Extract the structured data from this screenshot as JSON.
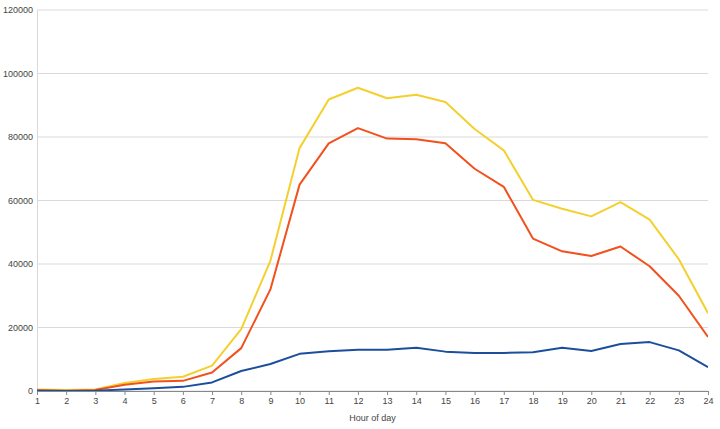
{
  "chart_data": {
    "type": "line",
    "x_label": "Hour of day",
    "x": [
      1,
      2,
      3,
      4,
      5,
      6,
      7,
      8,
      9,
      10,
      11,
      12,
      13,
      14,
      15,
      16,
      17,
      18,
      19,
      20,
      21,
      22,
      23,
      24
    ],
    "xlim": [
      1,
      24
    ],
    "xticks": [
      1,
      2,
      3,
      4,
      5,
      6,
      7,
      8,
      9,
      10,
      11,
      12,
      13,
      14,
      15,
      16,
      17,
      18,
      19,
      20,
      21,
      22,
      23,
      24
    ],
    "ylim": [
      0,
      120000
    ],
    "yticks": [
      0,
      20000,
      40000,
      60000,
      80000,
      100000,
      120000
    ],
    "grid": true,
    "series": [
      {
        "color": "#f4d02f",
        "values": [
          500,
          300,
          500,
          2500,
          3800,
          4500,
          8000,
          19500,
          41000,
          76500,
          91800,
          95500,
          92200,
          93300,
          91000,
          82500,
          75800,
          60200,
          57400,
          55000,
          59500,
          54000,
          41500,
          24500
        ]
      },
      {
        "color": "#f2501c",
        "values": [
          200,
          100,
          300,
          2000,
          3000,
          3200,
          5800,
          13500,
          32000,
          65000,
          78000,
          82800,
          79500,
          79300,
          78000,
          70000,
          64300,
          48000,
          44000,
          42500,
          45500,
          39300,
          30000,
          17000
        ]
      },
      {
        "color": "#1b4f9c",
        "values": [
          100,
          0,
          100,
          500,
          900,
          1300,
          2700,
          6300,
          8500,
          11700,
          12500,
          13000,
          13000,
          13600,
          12400,
          12000,
          12000,
          12200,
          13600,
          12600,
          14800,
          15400,
          12800,
          7500
        ]
      }
    ]
  }
}
